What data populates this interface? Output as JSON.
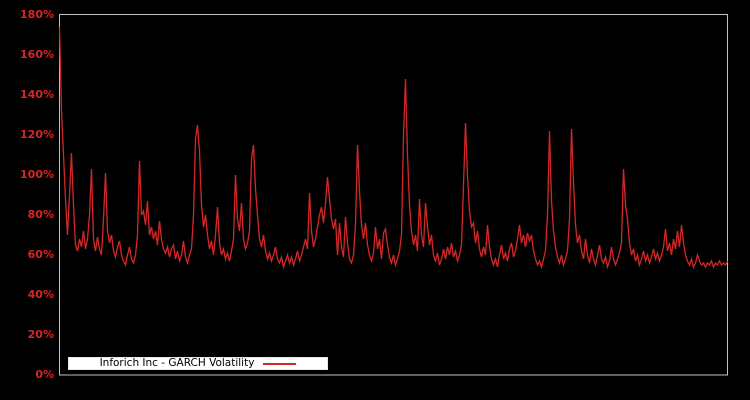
{
  "chart_data": {
    "type": "line",
    "title": "",
    "xlabel": "",
    "ylabel": "",
    "ylim": [
      0,
      180
    ],
    "y_tick_labels": [
      "180%",
      "160%",
      "140%",
      "120%",
      "100%",
      "80%",
      "60%",
      "40%",
      "20%",
      "0%"
    ],
    "x_axis_labels_visible": false,
    "grid": false,
    "legend_position": "bottom-left",
    "background_color": "#000000",
    "frame_color": "#c0c0c0",
    "tick_color": "#d62728",
    "line_color": "#d62728",
    "series": [
      {
        "name": "Inforich Inc - GARCH Volatility",
        "unit": "percent",
        "values": [
          174,
          132,
          110,
          88,
          70,
          90,
          111,
          85,
          65,
          62,
          68,
          64,
          72,
          63,
          68,
          80,
          103,
          68,
          62,
          69,
          63,
          60,
          78,
          101,
          72,
          66,
          70,
          62,
          59,
          64,
          67,
          60,
          57,
          55,
          60,
          64,
          58,
          56,
          60,
          70,
          107,
          80,
          82,
          75,
          87,
          70,
          74,
          68,
          72,
          65,
          77,
          68,
          63,
          61,
          64,
          59,
          63,
          65,
          58,
          62,
          57,
          60,
          67,
          59,
          56,
          60,
          63,
          80,
          118,
          125,
          112,
          85,
          74,
          80,
          70,
          63,
          67,
          60,
          70,
          84,
          66,
          60,
          63,
          58,
          61,
          57,
          62,
          68,
          100,
          78,
          72,
          86,
          68,
          63,
          66,
          72,
          108,
          115,
          93,
          80,
          68,
          64,
          70,
          62,
          58,
          61,
          57,
          60,
          64,
          58,
          56,
          59,
          54,
          57,
          60,
          56,
          59,
          55,
          58,
          62,
          57,
          60,
          64,
          68,
          63,
          91,
          72,
          64,
          68,
          74,
          80,
          84,
          76,
          86,
          99,
          88,
          78,
          73,
          78,
          60,
          76,
          64,
          59,
          79,
          66,
          58,
          56,
          60,
          75,
          115,
          92,
          75,
          68,
          76,
          65,
          60,
          57,
          61,
          74,
          63,
          68,
          58,
          71,
          73,
          65,
          59,
          56,
          60,
          55,
          58,
          62,
          70,
          120,
          148,
          110,
          85,
          72,
          65,
          70,
          62,
          88,
          70,
          64,
          86,
          74,
          65,
          70,
          60,
          57,
          61,
          55,
          58,
          63,
          58,
          64,
          60,
          66,
          59,
          62,
          57,
          60,
          65,
          95,
          126,
          100,
          82,
          74,
          76,
          66,
          72,
          63,
          59,
          64,
          60,
          75,
          64,
          58,
          55,
          58,
          54,
          60,
          65,
          58,
          61,
          57,
          63,
          66,
          59,
          62,
          68,
          75,
          66,
          70,
          64,
          71,
          67,
          70,
          62,
          58,
          55,
          57,
          54,
          58,
          62,
          80,
          122,
          87,
          72,
          64,
          59,
          56,
          60,
          55,
          58,
          62,
          78,
          123,
          96,
          75,
          66,
          70,
          62,
          58,
          68,
          60,
          56,
          63,
          58,
          55,
          60,
          65,
          58,
          56,
          59,
          54,
          57,
          64,
          58,
          55,
          58,
          61,
          66,
          103,
          85,
          78,
          66,
          60,
          63,
          57,
          60,
          55,
          58,
          62,
          57,
          60,
          56,
          59,
          63,
          58,
          61,
          57,
          60,
          64,
          73,
          62,
          66,
          60,
          68,
          63,
          72,
          64,
          75,
          66,
          60,
          57,
          55,
          58,
          54,
          56,
          60,
          57,
          55,
          56,
          54,
          56,
          55,
          57,
          54,
          56,
          55,
          57,
          55,
          56,
          55,
          57
        ]
      }
    ]
  }
}
